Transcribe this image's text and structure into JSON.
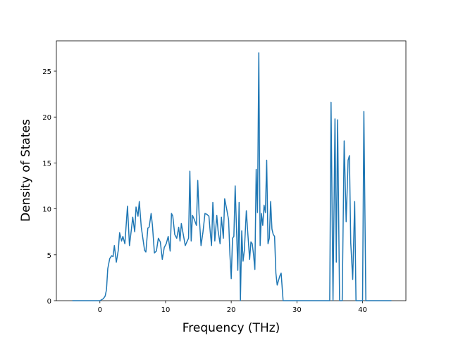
{
  "chart_data": {
    "type": "line",
    "x_label": "Frequency (THz)",
    "y_label": "Density of States",
    "xlim": [
      -6.63,
      46.6
    ],
    "ylim": [
      0,
      28.3
    ],
    "xticks": [
      0,
      10,
      20,
      30,
      40
    ],
    "yticks": [
      0,
      5,
      10,
      15,
      20,
      25
    ],
    "series": [
      {
        "color": "#1f77b4",
        "x": [
          -4.2,
          0,
          0.5,
          0.8,
          1.0,
          1.2,
          1.5,
          1.8,
          2.0,
          2.2,
          2.5,
          2.8,
          3.0,
          3.3,
          3.5,
          3.8,
          4.2,
          4.5,
          4.8,
          5.0,
          5.3,
          5.5,
          5.8,
          6.0,
          6.3,
          6.8,
          7.0,
          7.3,
          7.5,
          7.8,
          8.0,
          8.3,
          8.6,
          8.9,
          9.2,
          9.5,
          9.8,
          10.1,
          10.4,
          10.7,
          10.9,
          11.1,
          11.4,
          11.7,
          12.0,
          12.2,
          12.4,
          12.7,
          13.0,
          13.3,
          13.5,
          13.7,
          13.9,
          14.1,
          14.4,
          14.7,
          14.9,
          15.1,
          15.4,
          15.7,
          16.0,
          16.3,
          16.6,
          16.8,
          17.0,
          17.2,
          17.5,
          17.8,
          18.0,
          18.3,
          18.5,
          18.8,
          19.0,
          19.3,
          19.6,
          19.8,
          20.0,
          20.2,
          20.4,
          20.6,
          20.8,
          21.0,
          21.2,
          21.4,
          21.6,
          21.8,
          22.0,
          22.3,
          22.5,
          22.8,
          23.0,
          23.2,
          23.4,
          23.6,
          23.8,
          24.0,
          24.2,
          24.4,
          24.6,
          24.8,
          25.0,
          25.2,
          25.4,
          25.6,
          25.8,
          26.0,
          26.2,
          26.4,
          26.6,
          26.8,
          27.0,
          27.2,
          27.4,
          27.6,
          27.9,
          35.0,
          35.2,
          35.5,
          35.8,
          36.0,
          36.2,
          36.5,
          36.9,
          37.2,
          37.5,
          37.8,
          38.0,
          38.2,
          38.5,
          38.8,
          39.0,
          40.0,
          40.2,
          40.5,
          44.4
        ],
        "values": [
          0,
          0,
          0.2,
          0.5,
          1.2,
          3.5,
          4.6,
          4.9,
          4.8,
          6.0,
          4.2,
          5.5,
          7.4,
          6.5,
          7.0,
          6.2,
          10.3,
          6.0,
          7.8,
          9.1,
          7.5,
          10.2,
          9.2,
          10.8,
          8.0,
          5.5,
          5.3,
          7.9,
          8.0,
          9.5,
          8.2,
          5.2,
          5.4,
          6.8,
          6.4,
          4.5,
          5.8,
          6.2,
          7.0,
          5.4,
          9.5,
          9.2,
          7.2,
          6.8,
          8.0,
          6.5,
          8.4,
          7.2,
          6.0,
          6.5,
          6.8,
          14.1,
          6.5,
          9.3,
          8.8,
          8.2,
          13.1,
          9.5,
          6.0,
          7.5,
          9.5,
          9.4,
          9.2,
          7.5,
          6.0,
          10.7,
          6.5,
          9.3,
          7.6,
          6.2,
          9.1,
          6.8,
          11.1,
          10.0,
          8.8,
          5.0,
          2.4,
          6.8,
          7.0,
          12.5,
          7.9,
          3.3,
          10.7,
          0,
          7.6,
          4.3,
          5.5,
          9.8,
          7.6,
          4.5,
          6.4,
          6.2,
          5.0,
          3.4,
          14.3,
          9.6,
          27.0,
          6.0,
          9.5,
          8.2,
          10.4,
          9.6,
          15.3,
          6.2,
          6.8,
          10.8,
          7.8,
          7.2,
          7.0,
          3.0,
          1.7,
          2.2,
          2.7,
          3.0,
          0,
          0,
          21.6,
          0,
          19.8,
          4.2,
          19.7,
          0,
          0,
          17.4,
          8.6,
          15.3,
          15.8,
          6.3,
          2.3,
          10.8,
          0,
          0,
          20.6,
          0,
          0
        ]
      }
    ]
  }
}
